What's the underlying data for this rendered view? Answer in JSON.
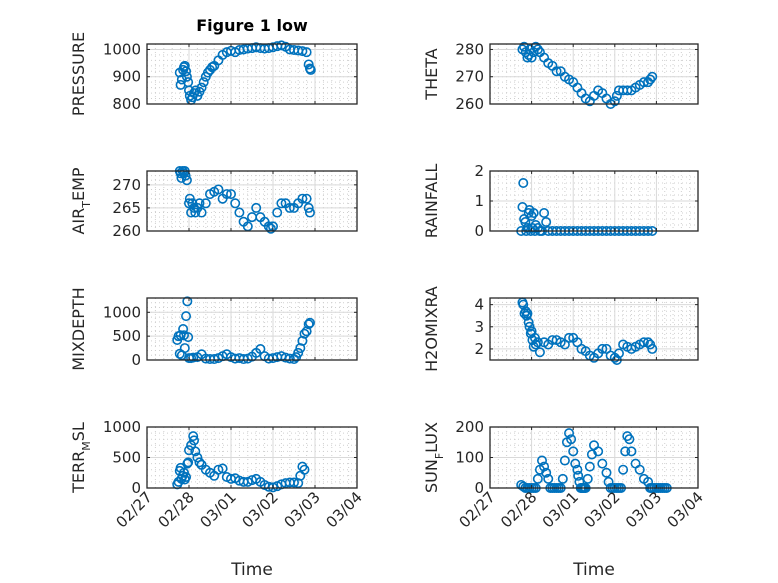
{
  "figure": {
    "title": "Figure 1 low",
    "marker_color": "#0072BD",
    "grid_color": "#d9d9d9",
    "axis_color": "#262626"
  },
  "chart_data": [
    {
      "id": "pressure",
      "type": "scatter",
      "title": "Figure 1 low",
      "ylabel": "PRESSURE",
      "ylabel_parts": [
        "PRESSURE"
      ],
      "xlabel": "",
      "ylim": [
        800,
        1020
      ],
      "yticks": [
        800,
        900,
        1000
      ],
      "xlim": [
        "02/27",
        "03/04"
      ],
      "xticks": [
        "02/27",
        "02/28",
        "03/01",
        "03/02",
        "03/03",
        "03/04"
      ],
      "grid": true,
      "minor_grid": true,
      "x": [
        0.78,
        0.8,
        0.83,
        0.86,
        0.88,
        0.9,
        0.93,
        0.95,
        0.98,
        1.0,
        1.02,
        1.05,
        1.08,
        1.12,
        1.16,
        1.2,
        1.25,
        1.3,
        1.35,
        1.4,
        1.45,
        1.5,
        1.55,
        1.6,
        1.7,
        1.8,
        1.9,
        2.0,
        2.1,
        2.2,
        2.3,
        2.4,
        2.5,
        2.6,
        2.7,
        2.8,
        2.9,
        3.0,
        3.1,
        3.2,
        3.3,
        3.4,
        3.5,
        3.6,
        3.7,
        3.8,
        3.85,
        3.88,
        3.9
      ],
      "y": [
        915,
        870,
        890,
        925,
        935,
        940,
        920,
        900,
        880,
        850,
        830,
        815,
        825,
        840,
        850,
        830,
        845,
        860,
        880,
        900,
        915,
        925,
        935,
        940,
        960,
        980,
        990,
        995,
        990,
        998,
        1000,
        1003,
        1005,
        1008,
        1005,
        1003,
        1005,
        1008,
        1012,
        1015,
        1010,
        1000,
        998,
        996,
        994,
        990,
        945,
        930,
        925
      ]
    },
    {
      "id": "theta",
      "type": "scatter",
      "ylabel": "THETA",
      "ylabel_parts": [
        "THETA"
      ],
      "xlabel": "",
      "ylim": [
        260,
        282
      ],
      "yticks": [
        260,
        270,
        280
      ],
      "xlim": [
        "02/27",
        "03/04"
      ],
      "xticks": [
        "02/27",
        "02/28",
        "03/01",
        "03/02",
        "03/03",
        "03/04"
      ],
      "grid": true,
      "minor_grid": true,
      "x": [
        0.78,
        0.82,
        0.86,
        0.9,
        0.93,
        0.96,
        1.0,
        1.05,
        1.1,
        1.15,
        1.2,
        1.3,
        1.4,
        1.5,
        1.6,
        1.7,
        1.8,
        1.9,
        2.0,
        2.1,
        2.2,
        2.3,
        2.4,
        2.5,
        2.6,
        2.7,
        2.8,
        2.9,
        3.0,
        3.05,
        3.1,
        3.2,
        3.3,
        3.4,
        3.5,
        3.6,
        3.7,
        3.8,
        3.85,
        3.9
      ],
      "y": [
        280,
        281,
        279,
        277,
        278,
        280,
        277,
        279,
        281,
        280,
        279,
        277,
        275,
        274,
        272,
        272,
        270,
        269,
        268,
        266,
        264,
        262,
        261,
        263,
        265,
        264,
        262,
        260,
        261,
        263,
        265,
        265,
        265,
        265,
        266,
        267,
        268,
        268,
        269,
        270
      ]
    },
    {
      "id": "air_temp",
      "type": "scatter",
      "ylabel": "AIR_TEMP",
      "ylabel_parts": [
        "AIR",
        "T",
        "EMP"
      ],
      "xlabel": "",
      "ylim": [
        260,
        273
      ],
      "yticks": [
        260,
        265,
        270
      ],
      "xlim": [
        "02/27",
        "03/04"
      ],
      "xticks": [
        "02/27",
        "02/28",
        "03/01",
        "03/02",
        "03/03",
        "03/04"
      ],
      "grid": true,
      "minor_grid": true,
      "x": [
        0.78,
        0.8,
        0.82,
        0.85,
        0.88,
        0.9,
        0.92,
        0.95,
        1.0,
        1.02,
        1.05,
        1.08,
        1.12,
        1.15,
        1.2,
        1.25,
        1.3,
        1.4,
        1.5,
        1.6,
        1.7,
        1.8,
        1.9,
        2.0,
        2.1,
        2.2,
        2.3,
        2.4,
        2.5,
        2.6,
        2.7,
        2.8,
        2.9,
        2.95,
        3.0,
        3.1,
        3.2,
        3.3,
        3.4,
        3.5,
        3.6,
        3.7,
        3.8,
        3.85,
        3.88
      ],
      "y": [
        273,
        272.5,
        271.5,
        273,
        272.5,
        273,
        272,
        271,
        266,
        267,
        264,
        266,
        265,
        264,
        265,
        266,
        264,
        266,
        268,
        268.5,
        269,
        267,
        268,
        268,
        266,
        264,
        262,
        261,
        263,
        265,
        263,
        262,
        261,
        260.5,
        261,
        264,
        266,
        266,
        265,
        265,
        266,
        267,
        267,
        265,
        264
      ]
    },
    {
      "id": "rainfall",
      "type": "scatter",
      "ylabel": "RAINFALL",
      "ylabel_parts": [
        "RAINFALL"
      ],
      "xlabel": "",
      "ylim": [
        0,
        2
      ],
      "yticks": [
        0,
        1,
        2
      ],
      "xlim": [
        "02/27",
        "03/04"
      ],
      "xticks": [
        "02/27",
        "02/28",
        "03/01",
        "03/02",
        "03/03",
        "03/04"
      ],
      "grid": true,
      "minor_grid": true,
      "x": [
        0.75,
        0.78,
        0.8,
        0.82,
        0.85,
        0.87,
        0.9,
        0.93,
        0.95,
        0.98,
        1.0,
        1.02,
        1.05,
        1.08,
        1.1,
        1.15,
        1.2,
        1.25,
        1.3,
        1.35,
        1.4,
        1.5,
        1.6,
        1.7,
        1.8,
        1.9,
        2.0,
        2.1,
        2.2,
        2.3,
        2.4,
        2.5,
        2.6,
        2.7,
        2.8,
        2.9,
        3.0,
        3.1,
        3.2,
        3.3,
        3.4,
        3.5,
        3.6,
        3.7,
        3.8,
        3.9
      ],
      "y": [
        0,
        0.8,
        1.6,
        0.4,
        0.3,
        0,
        0.1,
        0.6,
        0.7,
        0,
        0.5,
        0.1,
        0.6,
        0,
        0.2,
        0.1,
        0,
        0,
        0.6,
        0.3,
        0,
        0,
        0,
        0,
        0,
        0,
        0,
        0,
        0,
        0,
        0,
        0,
        0,
        0,
        0,
        0,
        0,
        0,
        0,
        0,
        0,
        0,
        0,
        0,
        0,
        0
      ]
    },
    {
      "id": "mixdepth",
      "type": "scatter",
      "ylabel": "MIXDEPTH",
      "ylabel_parts": [
        "MIXDEPTH"
      ],
      "xlabel": "",
      "ylim": [
        0,
        1300
      ],
      "yticks": [
        0,
        500,
        1000
      ],
      "xlim": [
        "02/27",
        "03/04"
      ],
      "xticks": [
        "02/27",
        "02/28",
        "03/01",
        "03/02",
        "03/03",
        "03/04"
      ],
      "grid": true,
      "minor_grid": true,
      "x": [
        0.72,
        0.75,
        0.78,
        0.8,
        0.83,
        0.86,
        0.88,
        0.9,
        0.93,
        0.96,
        0.98,
        1.0,
        1.05,
        1.1,
        1.2,
        1.3,
        1.4,
        1.5,
        1.6,
        1.7,
        1.8,
        1.9,
        2.0,
        2.1,
        2.2,
        2.3,
        2.4,
        2.5,
        2.6,
        2.7,
        2.8,
        2.9,
        3.0,
        3.1,
        3.2,
        3.3,
        3.4,
        3.5,
        3.55,
        3.6,
        3.65,
        3.7,
        3.75,
        3.8,
        3.85,
        3.88
      ],
      "y": [
        420,
        500,
        130,
        520,
        100,
        650,
        520,
        250,
        920,
        1230,
        480,
        40,
        40,
        50,
        60,
        120,
        30,
        20,
        20,
        40,
        80,
        120,
        60,
        30,
        40,
        20,
        30,
        70,
        150,
        230,
        80,
        30,
        40,
        60,
        80,
        50,
        30,
        20,
        60,
        150,
        250,
        400,
        550,
        600,
        750,
        780
      ]
    },
    {
      "id": "h2omixra",
      "type": "scatter",
      "ylabel": "H2OMIXRA",
      "ylabel_parts": [
        "H2OMIXRA"
      ],
      "xlabel": "",
      "ylim": [
        1.5,
        4.3
      ],
      "yticks": [
        2,
        3,
        4
      ],
      "xlim": [
        "02/27",
        "03/04"
      ],
      "xticks": [
        "02/27",
        "02/28",
        "03/01",
        "03/02",
        "03/03",
        "03/04"
      ],
      "grid": true,
      "minor_grid": true,
      "x": [
        0.78,
        0.8,
        0.83,
        0.86,
        0.88,
        0.9,
        0.93,
        0.95,
        0.98,
        1.0,
        1.02,
        1.05,
        1.08,
        1.1,
        1.15,
        1.2,
        1.3,
        1.4,
        1.5,
        1.6,
        1.7,
        1.8,
        1.9,
        2.0,
        2.1,
        2.2,
        2.3,
        2.4,
        2.5,
        2.6,
        2.7,
        2.8,
        2.9,
        3.0,
        3.05,
        3.1,
        3.2,
        3.3,
        3.4,
        3.5,
        3.6,
        3.7,
        3.8,
        3.85,
        3.9
      ],
      "y": [
        4.1,
        4.0,
        3.6,
        3.7,
        3.5,
        3.6,
        3.2,
        3.0,
        2.7,
        2.8,
        2.4,
        2.1,
        2.5,
        2.2,
        2.3,
        1.85,
        2.3,
        2.2,
        2.4,
        2.4,
        2.3,
        2.2,
        2.5,
        2.5,
        2.3,
        2.0,
        1.9,
        1.7,
        1.6,
        1.8,
        2.0,
        2.0,
        1.7,
        1.6,
        1.5,
        1.8,
        2.2,
        2.1,
        2.0,
        2.1,
        2.2,
        2.3,
        2.3,
        2.2,
        2.0
      ]
    },
    {
      "id": "terr_msl",
      "type": "scatter",
      "ylabel": "TERR_MSL",
      "ylabel_parts": [
        "TERR",
        "M",
        "SL"
      ],
      "xlabel": "Time",
      "ylim": [
        0,
        1000
      ],
      "yticks": [
        0,
        500,
        1000
      ],
      "xlim": [
        "02/27",
        "03/04"
      ],
      "xticks": [
        "02/27",
        "02/28",
        "03/01",
        "03/02",
        "03/03",
        "03/04"
      ],
      "grid": true,
      "minor_grid": true,
      "x": [
        0.72,
        0.75,
        0.78,
        0.8,
        0.82,
        0.85,
        0.88,
        0.9,
        0.93,
        0.96,
        0.98,
        1.0,
        1.05,
        1.1,
        1.12,
        1.15,
        1.2,
        1.25,
        1.3,
        1.4,
        1.5,
        1.6,
        1.7,
        1.8,
        1.9,
        2.0,
        2.1,
        2.2,
        2.3,
        2.4,
        2.5,
        2.6,
        2.7,
        2.8,
        2.9,
        3.0,
        3.1,
        3.2,
        3.3,
        3.4,
        3.5,
        3.6,
        3.65,
        3.7,
        3.75
      ],
      "y": [
        60,
        100,
        280,
        330,
        150,
        200,
        250,
        140,
        180,
        400,
        420,
        620,
        700,
        850,
        780,
        600,
        500,
        420,
        380,
        300,
        250,
        200,
        300,
        320,
        180,
        150,
        160,
        120,
        100,
        100,
        130,
        150,
        100,
        50,
        20,
        10,
        30,
        60,
        80,
        90,
        90,
        80,
        200,
        350,
        300
      ]
    },
    {
      "id": "sun_flux",
      "type": "scatter",
      "ylabel": "SUN_FLUX",
      "ylabel_parts": [
        "SUN",
        "F",
        "LUX"
      ],
      "xlabel": "Time",
      "ylim": [
        0,
        200
      ],
      "yticks": [
        0,
        100,
        200
      ],
      "xlim": [
        "02/27",
        "03/04"
      ],
      "xticks": [
        "02/27",
        "02/28",
        "03/01",
        "03/02",
        "03/03",
        "03/04"
      ],
      "grid": true,
      "minor_grid": true,
      "x": [
        0.75,
        0.8,
        0.85,
        0.9,
        0.95,
        1.0,
        1.05,
        1.1,
        1.15,
        1.2,
        1.25,
        1.3,
        1.35,
        1.4,
        1.45,
        1.5,
        1.55,
        1.6,
        1.65,
        1.7,
        1.75,
        1.8,
        1.85,
        1.9,
        1.95,
        2.0,
        2.05,
        2.1,
        2.12,
        2.15,
        2.18,
        2.2,
        2.23,
        2.25,
        2.28,
        2.3,
        2.35,
        2.4,
        2.45,
        2.5,
        2.6,
        2.7,
        2.8,
        2.85,
        2.9,
        2.95,
        3.0,
        3.05,
        3.1,
        3.15,
        3.2,
        3.25,
        3.3,
        3.35,
        3.4,
        3.5,
        3.6,
        3.7,
        3.8,
        3.85,
        3.88,
        3.9,
        3.95,
        4.0,
        4.05,
        4.1,
        4.15,
        4.2,
        4.25
      ],
      "y": [
        10,
        5,
        0,
        0,
        0,
        0,
        0,
        0,
        30,
        60,
        90,
        70,
        50,
        30,
        0,
        0,
        0,
        0,
        0,
        0,
        30,
        90,
        150,
        180,
        160,
        120,
        80,
        60,
        40,
        20,
        0,
        0,
        0,
        0,
        0,
        0,
        30,
        70,
        110,
        140,
        120,
        80,
        50,
        20,
        0,
        0,
        0,
        0,
        0,
        0,
        60,
        120,
        170,
        160,
        120,
        80,
        60,
        30,
        20,
        0,
        0,
        0,
        0,
        0,
        0,
        0,
        0,
        0,
        0
      ]
    }
  ]
}
